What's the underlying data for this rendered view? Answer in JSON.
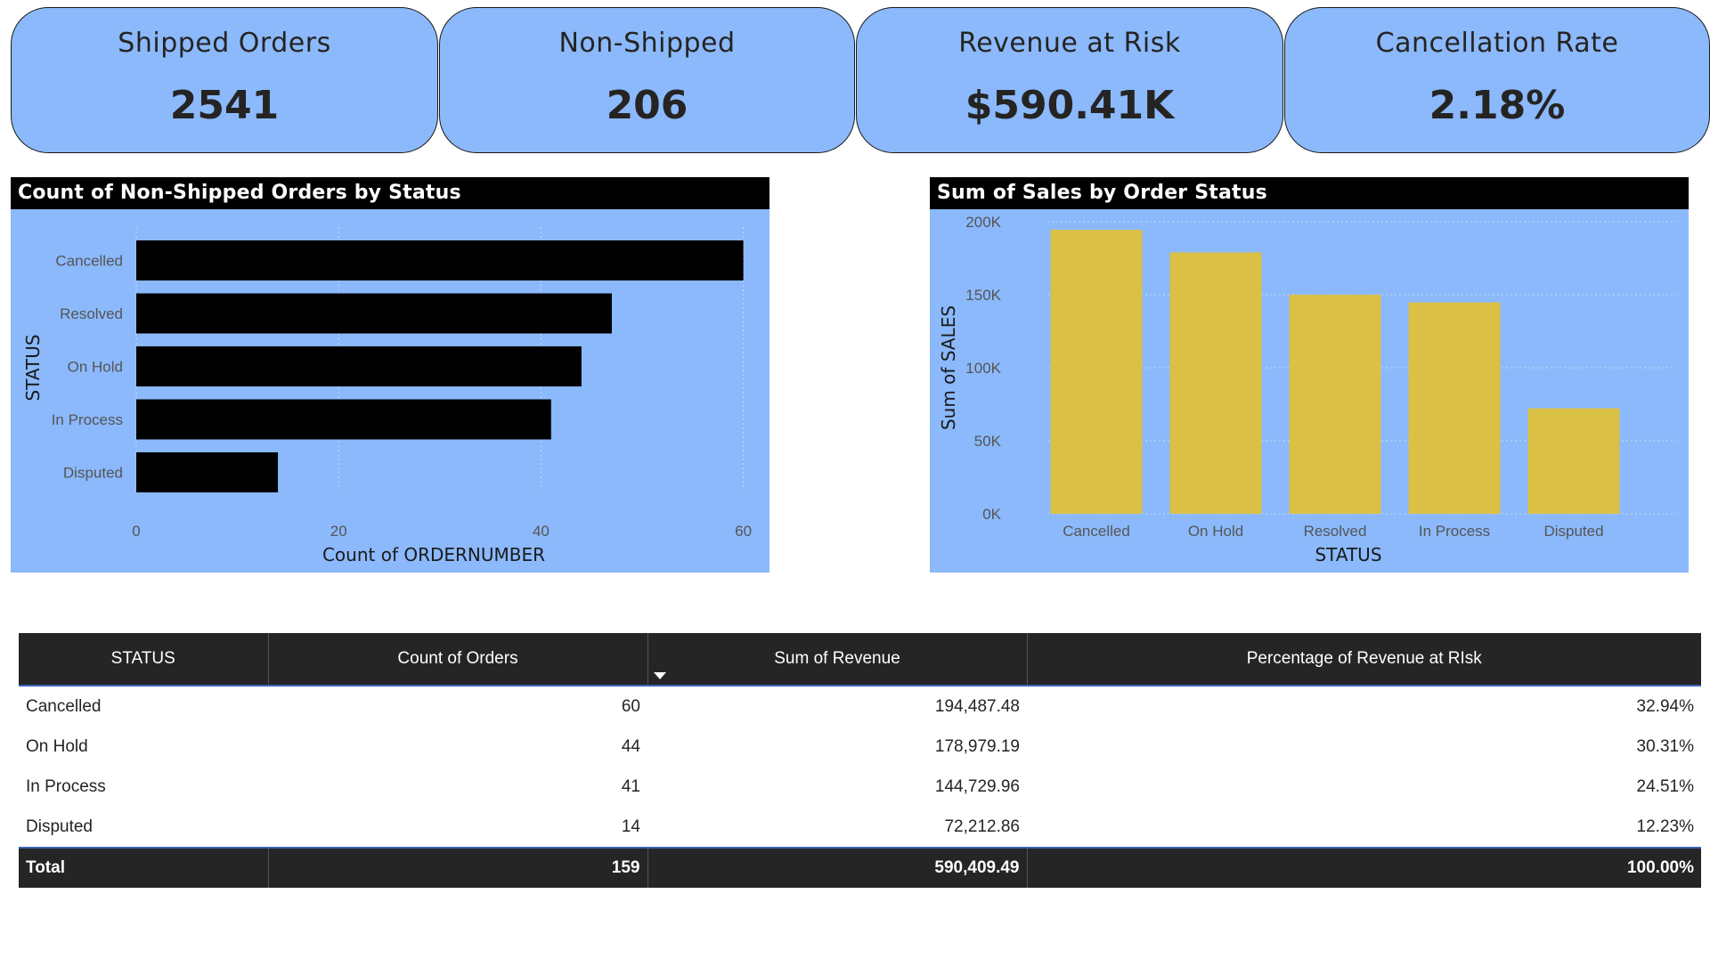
{
  "kpis": [
    {
      "title": "Shipped Orders",
      "value": "2541"
    },
    {
      "title": "Non-Shipped",
      "value": "206"
    },
    {
      "title": "Revenue at Risk",
      "value": "$590.41K"
    },
    {
      "title": "Cancellation Rate",
      "value": "2.18%"
    }
  ],
  "colors": {
    "panel_bg": "#8bb9fb",
    "bar_black": "#000000",
    "bar_gold": "#dbc046",
    "header_dark": "#252525"
  },
  "chart_data": [
    {
      "type": "bar",
      "orientation": "horizontal",
      "title": "Count of Non-Shipped Orders by Status",
      "categories": [
        "Cancelled",
        "Resolved",
        "On Hold",
        "In Process",
        "Disputed"
      ],
      "values": [
        60,
        47,
        44,
        41,
        14
      ],
      "xlabel": "Count of ORDERNUMBER",
      "ylabel": "STATUS",
      "xlim": [
        0,
        61
      ],
      "xticks": [
        "0",
        "20",
        "40",
        "60"
      ],
      "grid": true
    },
    {
      "type": "bar",
      "orientation": "vertical",
      "title": "Sum of Sales by Order Status",
      "categories": [
        "Cancelled",
        "On Hold",
        "Resolved",
        "In Process",
        "Disputed"
      ],
      "values": [
        194487.48,
        178979.19,
        150000,
        144729.96,
        72212.86
      ],
      "xlabel": "STATUS",
      "ylabel": "Sum of SALES",
      "ylim": [
        0,
        200000
      ],
      "yticks": [
        "0K",
        "50K",
        "100K",
        "150K",
        "200K"
      ],
      "grid": true
    }
  ],
  "table": {
    "headers": [
      "STATUS",
      "Count of Orders",
      "Sum of Revenue",
      "Percentage of Revenue at RIsk"
    ],
    "rows": [
      [
        "Cancelled",
        "60",
        "194,487.48",
        "32.94%"
      ],
      [
        "On Hold",
        "44",
        "178,979.19",
        "30.31%"
      ],
      [
        "In Process",
        "41",
        "144,729.96",
        "24.51%"
      ],
      [
        "Disputed",
        "14",
        "72,212.86",
        "12.23%"
      ]
    ],
    "total": [
      "Total",
      "159",
      "590,409.49",
      "100.00%"
    ]
  }
}
